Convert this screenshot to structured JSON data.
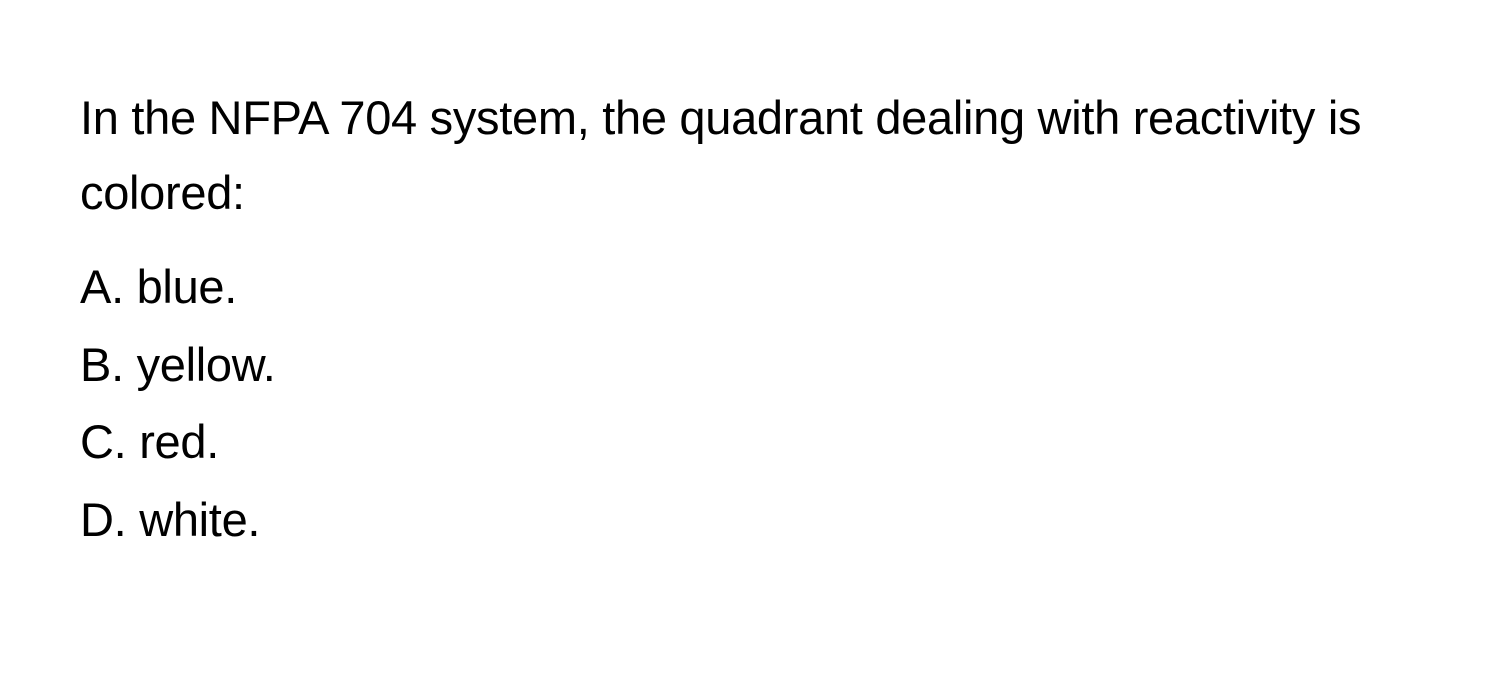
{
  "question": {
    "text": "In the NFPA 704 system, the quadrant dealing with reactivity is colored:",
    "fontsize": 47,
    "color": "#000000",
    "line_height": 1.6
  },
  "options": [
    {
      "label": "A",
      "text": "blue."
    },
    {
      "label": "B",
      "text": "yellow."
    },
    {
      "label": "C",
      "text": "red."
    },
    {
      "label": "D",
      "text": "white."
    }
  ],
  "styling": {
    "background_color": "#ffffff",
    "text_color": "#000000",
    "option_fontsize": 47,
    "option_line_height": 1.65,
    "font_family": "-apple-system, BlinkMacSystemFont, 'Segoe UI', Helvetica, Arial, sans-serif"
  }
}
